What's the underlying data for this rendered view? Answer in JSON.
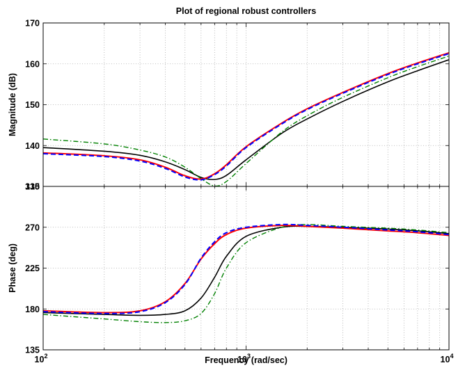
{
  "chart_data": {
    "type": "line",
    "title": "Plot of regional robust controllers",
    "xlabel": "Frequency  (rad/sec)",
    "x_scale": "log",
    "xlim": [
      100,
      10000
    ],
    "x_ticks": [
      {
        "value": 100,
        "base": "10",
        "exp": "2"
      },
      {
        "value": 1000,
        "base": "10",
        "exp": "3"
      },
      {
        "value": 10000,
        "base": "10",
        "exp": "4"
      }
    ],
    "grid": true,
    "series_styles": [
      {
        "color": "#ff0000",
        "dash": "",
        "width": 2
      },
      {
        "color": "#0000ff",
        "dash": "7,4",
        "width": 2
      },
      {
        "color": "#000000",
        "dash": "",
        "width": 1.6
      },
      {
        "color": "#008000",
        "dash": "7,3,1.5,3",
        "width": 1.4
      }
    ],
    "subplots": [
      {
        "ylabel": "Magnitude (dB)",
        "ylim": [
          130,
          170
        ],
        "yticks": [
          "130",
          "140",
          "150",
          "160",
          "170"
        ],
        "x": [
          100,
          200,
          300,
          400,
          500,
          600,
          700,
          800,
          1000,
          1500,
          2000,
          3000,
          5000,
          7000,
          10000
        ],
        "series": [
          {
            "values": [
              138.2,
              137.5,
              136.5,
              134.7,
              132.6,
              131.8,
              133.1,
              135.3,
              139.7,
              145.5,
              149.0,
              153.0,
              157.6,
              160.2,
              162.7
            ]
          },
          {
            "values": [
              138.0,
              137.3,
              136.2,
              134.4,
              132.3,
              131.6,
              132.9,
              135.0,
              139.5,
              145.3,
              148.8,
              152.8,
              157.4,
              160.0,
              162.5
            ]
          },
          {
            "values": [
              139.5,
              138.6,
              137.6,
              136.0,
              134.1,
              132.2,
              131.7,
              132.7,
              136.5,
              143.0,
              146.5,
              150.8,
              155.6,
              158.3,
              161.0
            ]
          },
          {
            "values": [
              141.6,
              140.4,
              138.9,
              137.2,
              134.7,
              131.9,
              130.1,
              131.2,
              135.6,
              143.3,
              147.3,
              151.8,
              156.6,
              159.3,
              161.9
            ]
          }
        ]
      },
      {
        "ylabel": "Phase (deg)",
        "ylim": [
          135,
          315
        ],
        "yticks": [
          "135",
          "180",
          "225",
          "270",
          "315"
        ],
        "x": [
          100,
          200,
          300,
          400,
          500,
          600,
          700,
          800,
          1000,
          1500,
          2000,
          3000,
          5000,
          7000,
          10000
        ],
        "series": [
          {
            "values": [
              178,
              176,
              178,
              188,
              208,
              235,
              252,
              262,
              269,
              272,
              271,
              269,
              266,
              264,
              261
            ]
          },
          {
            "values": [
              177,
              175,
              177,
              187,
              207,
              236,
              254,
              264,
              270,
              273,
              272,
              270,
              267,
              265,
              262
            ]
          },
          {
            "values": [
              176,
              174,
              173,
              174,
              178,
              192,
              215,
              238,
              260,
              270,
              271,
              270,
              268,
              266,
              263
            ]
          },
          {
            "values": [
              174,
              169,
              166,
              165,
              167,
              175,
              197,
              225,
              253,
              270,
              273,
              271,
              269,
              267,
              264
            ]
          }
        ]
      }
    ]
  }
}
